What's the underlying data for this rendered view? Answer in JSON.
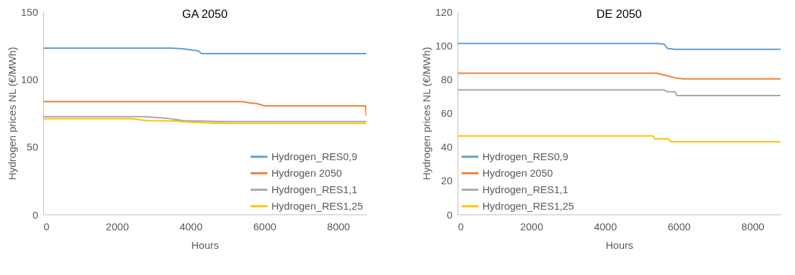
{
  "chart_data": [
    {
      "type": "line",
      "title": "GA 2050",
      "xlabel": "Hours",
      "ylabel": "Hydrogen prices NL (€/MWh)",
      "xlim": [
        0,
        8760
      ],
      "xticks": [
        0,
        2000,
        4000,
        6000,
        8000
      ],
      "ylim": [
        0,
        150
      ],
      "yticks": [
        0,
        50,
        100,
        150
      ],
      "legend": "bottom right",
      "series": [
        {
          "name": "Hydrogen_RES0,9",
          "color": "#5b9bd5",
          "x": [
            0,
            3500,
            3800,
            4200,
            4300,
            8760
          ],
          "values": [
            123,
            123,
            122.5,
            121,
            119,
            119
          ]
        },
        {
          "name": "Hydrogen 2050",
          "color": "#ed7d31",
          "x": [
            0,
            5400,
            5600,
            5800,
            6000,
            8740,
            8760
          ],
          "values": [
            83.5,
            83.5,
            82.5,
            82,
            80.3,
            80.3,
            73
          ]
        },
        {
          "name": "Hydrogen_RES1,1",
          "color": "#a5a5a5",
          "x": [
            0,
            2800,
            3400,
            3800,
            4800,
            8760
          ],
          "values": [
            72.3,
            72.3,
            71,
            69.4,
            68.8,
            68.8
          ]
        },
        {
          "name": "Hydrogen_RES1,25",
          "color": "#ffc000",
          "x": [
            0,
            2400,
            2800,
            3600,
            4000,
            5000,
            8760
          ],
          "values": [
            70.8,
            70.8,
            69.4,
            69.2,
            68.1,
            67.4,
            67.4
          ]
        }
      ]
    },
    {
      "type": "line",
      "title": "DE 2050",
      "xlabel": "Hours",
      "ylabel": "Hydrogen prices NL (€/MWh)",
      "xlim": [
        0,
        8760
      ],
      "xticks": [
        0,
        2000,
        4000,
        6000,
        8000
      ],
      "ylim": [
        0,
        120
      ],
      "yticks": [
        0,
        20,
        40,
        60,
        80,
        100,
        120
      ],
      "legend": "bottom left",
      "series": [
        {
          "name": "Hydrogen_RES0,9",
          "color": "#5b9bd5",
          "x": [
            0,
            5400,
            5600,
            5700,
            5900,
            8760
          ],
          "values": [
            101.2,
            101.2,
            100.8,
            98.2,
            97.7,
            97.7
          ]
        },
        {
          "name": "Hydrogen 2050",
          "color": "#ed7d31",
          "x": [
            0,
            5400,
            5600,
            5900,
            6100,
            8760
          ],
          "values": [
            83.6,
            83.6,
            82.6,
            80.9,
            80.2,
            80.2
          ]
        },
        {
          "name": "Hydrogen_RES1,1",
          "color": "#a5a5a5",
          "x": [
            0,
            5600,
            5700,
            5900,
            5950,
            8760
          ],
          "values": [
            73.7,
            73.7,
            72.6,
            72.6,
            70.4,
            70.4
          ]
        },
        {
          "name": "Hydrogen_RES1,25",
          "color": "#ffc000",
          "x": [
            0,
            5300,
            5350,
            5700,
            5800,
            8760
          ],
          "values": [
            46.5,
            46.5,
            44.7,
            44.7,
            43,
            43
          ]
        }
      ]
    }
  ]
}
